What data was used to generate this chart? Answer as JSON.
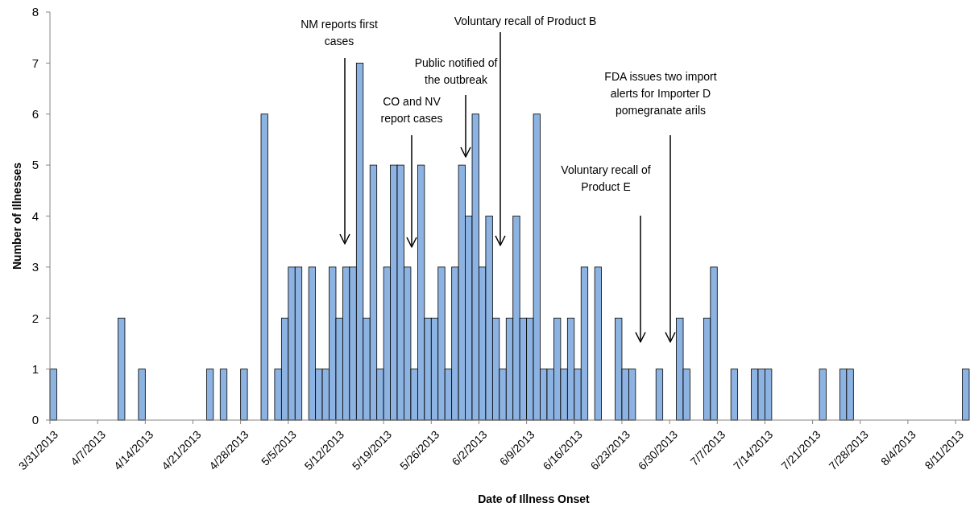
{
  "chart_data": {
    "type": "bar",
    "xlabel": "Date of Illness Onset",
    "ylabel": "Number of Illnesses",
    "color": "#8db3e2",
    "x": [
      "2013-03-31",
      "2013-04-10",
      "2013-04-13",
      "2013-04-23",
      "2013-04-25",
      "2013-04-28",
      "2013-05-01",
      "2013-05-03",
      "2013-05-04",
      "2013-05-05",
      "2013-05-06",
      "2013-05-08",
      "2013-05-09",
      "2013-05-10",
      "2013-05-11",
      "2013-05-12",
      "2013-05-13",
      "2013-05-14",
      "2013-05-15",
      "2013-05-16",
      "2013-05-17",
      "2013-05-18",
      "2013-05-19",
      "2013-05-20",
      "2013-05-21",
      "2013-05-22",
      "2013-05-23",
      "2013-05-24",
      "2013-05-25",
      "2013-05-26",
      "2013-05-27",
      "2013-05-28",
      "2013-05-29",
      "2013-05-30",
      "2013-05-31",
      "2013-06-01",
      "2013-06-02",
      "2013-06-03",
      "2013-06-04",
      "2013-06-05",
      "2013-06-06",
      "2013-06-07",
      "2013-06-08",
      "2013-06-09",
      "2013-06-10",
      "2013-06-11",
      "2013-06-12",
      "2013-06-13",
      "2013-06-14",
      "2013-06-15",
      "2013-06-16",
      "2013-06-17",
      "2013-06-19",
      "2013-06-22",
      "2013-06-23",
      "2013-06-24",
      "2013-06-28",
      "2013-07-01",
      "2013-07-02",
      "2013-07-05",
      "2013-07-06",
      "2013-07-09",
      "2013-07-12",
      "2013-07-13",
      "2013-07-14",
      "2013-07-22",
      "2013-07-25",
      "2013-07-26",
      "2013-08-12"
    ],
    "values": [
      1,
      2,
      1,
      1,
      1,
      1,
      6,
      1,
      2,
      3,
      3,
      3,
      1,
      1,
      3,
      2,
      3,
      3,
      7,
      2,
      5,
      1,
      3,
      5,
      5,
      3,
      1,
      5,
      2,
      2,
      3,
      1,
      3,
      5,
      4,
      6,
      3,
      4,
      2,
      1,
      2,
      4,
      2,
      2,
      6,
      1,
      1,
      2,
      1,
      2,
      1,
      3,
      3,
      2,
      1,
      1,
      1,
      2,
      1,
      2,
      3,
      1,
      1,
      1,
      1,
      1,
      1,
      1,
      1
    ],
    "xlim": [
      "2013-03-31",
      "2013-08-13"
    ],
    "xticks": [
      {
        "value": "2013-03-31",
        "label": "3/31/2013"
      },
      {
        "value": "2013-04-07",
        "label": "4/7/2013"
      },
      {
        "value": "2013-04-14",
        "label": "4/14/2013"
      },
      {
        "value": "2013-04-21",
        "label": "4/21/2013"
      },
      {
        "value": "2013-04-28",
        "label": "4/28/2013"
      },
      {
        "value": "2013-05-05",
        "label": "5/5/2013"
      },
      {
        "value": "2013-05-12",
        "label": "5/12/2013"
      },
      {
        "value": "2013-05-19",
        "label": "5/19/2013"
      },
      {
        "value": "2013-05-26",
        "label": "5/26/2013"
      },
      {
        "value": "2013-06-02",
        "label": "6/2/2013"
      },
      {
        "value": "2013-06-09",
        "label": "6/9/2013"
      },
      {
        "value": "2013-06-16",
        "label": "6/16/2013"
      },
      {
        "value": "2013-06-23",
        "label": "6/23/2013"
      },
      {
        "value": "2013-06-30",
        "label": "6/30/2013"
      },
      {
        "value": "2013-07-07",
        "label": "7/7/2013"
      },
      {
        "value": "2013-07-14",
        "label": "7/14/2013"
      },
      {
        "value": "2013-07-21",
        "label": "7/21/2013"
      },
      {
        "value": "2013-07-28",
        "label": "7/28/2013"
      },
      {
        "value": "2013-08-04",
        "label": "8/4/2013"
      },
      {
        "value": "2013-08-11",
        "label": "8/11/2013"
      }
    ],
    "ylim": [
      0,
      8
    ],
    "yticks": [
      0,
      1,
      2,
      3,
      4,
      5,
      6,
      7,
      8
    ],
    "annotations": [
      "NM reports first cases",
      "CO and NV report cases",
      "Public notified of the outbreak",
      "Voluntary recall of Product B",
      "Voluntary recall of Product E",
      "FDA issues two import alerts for Importer D pomegranate arils"
    ]
  }
}
